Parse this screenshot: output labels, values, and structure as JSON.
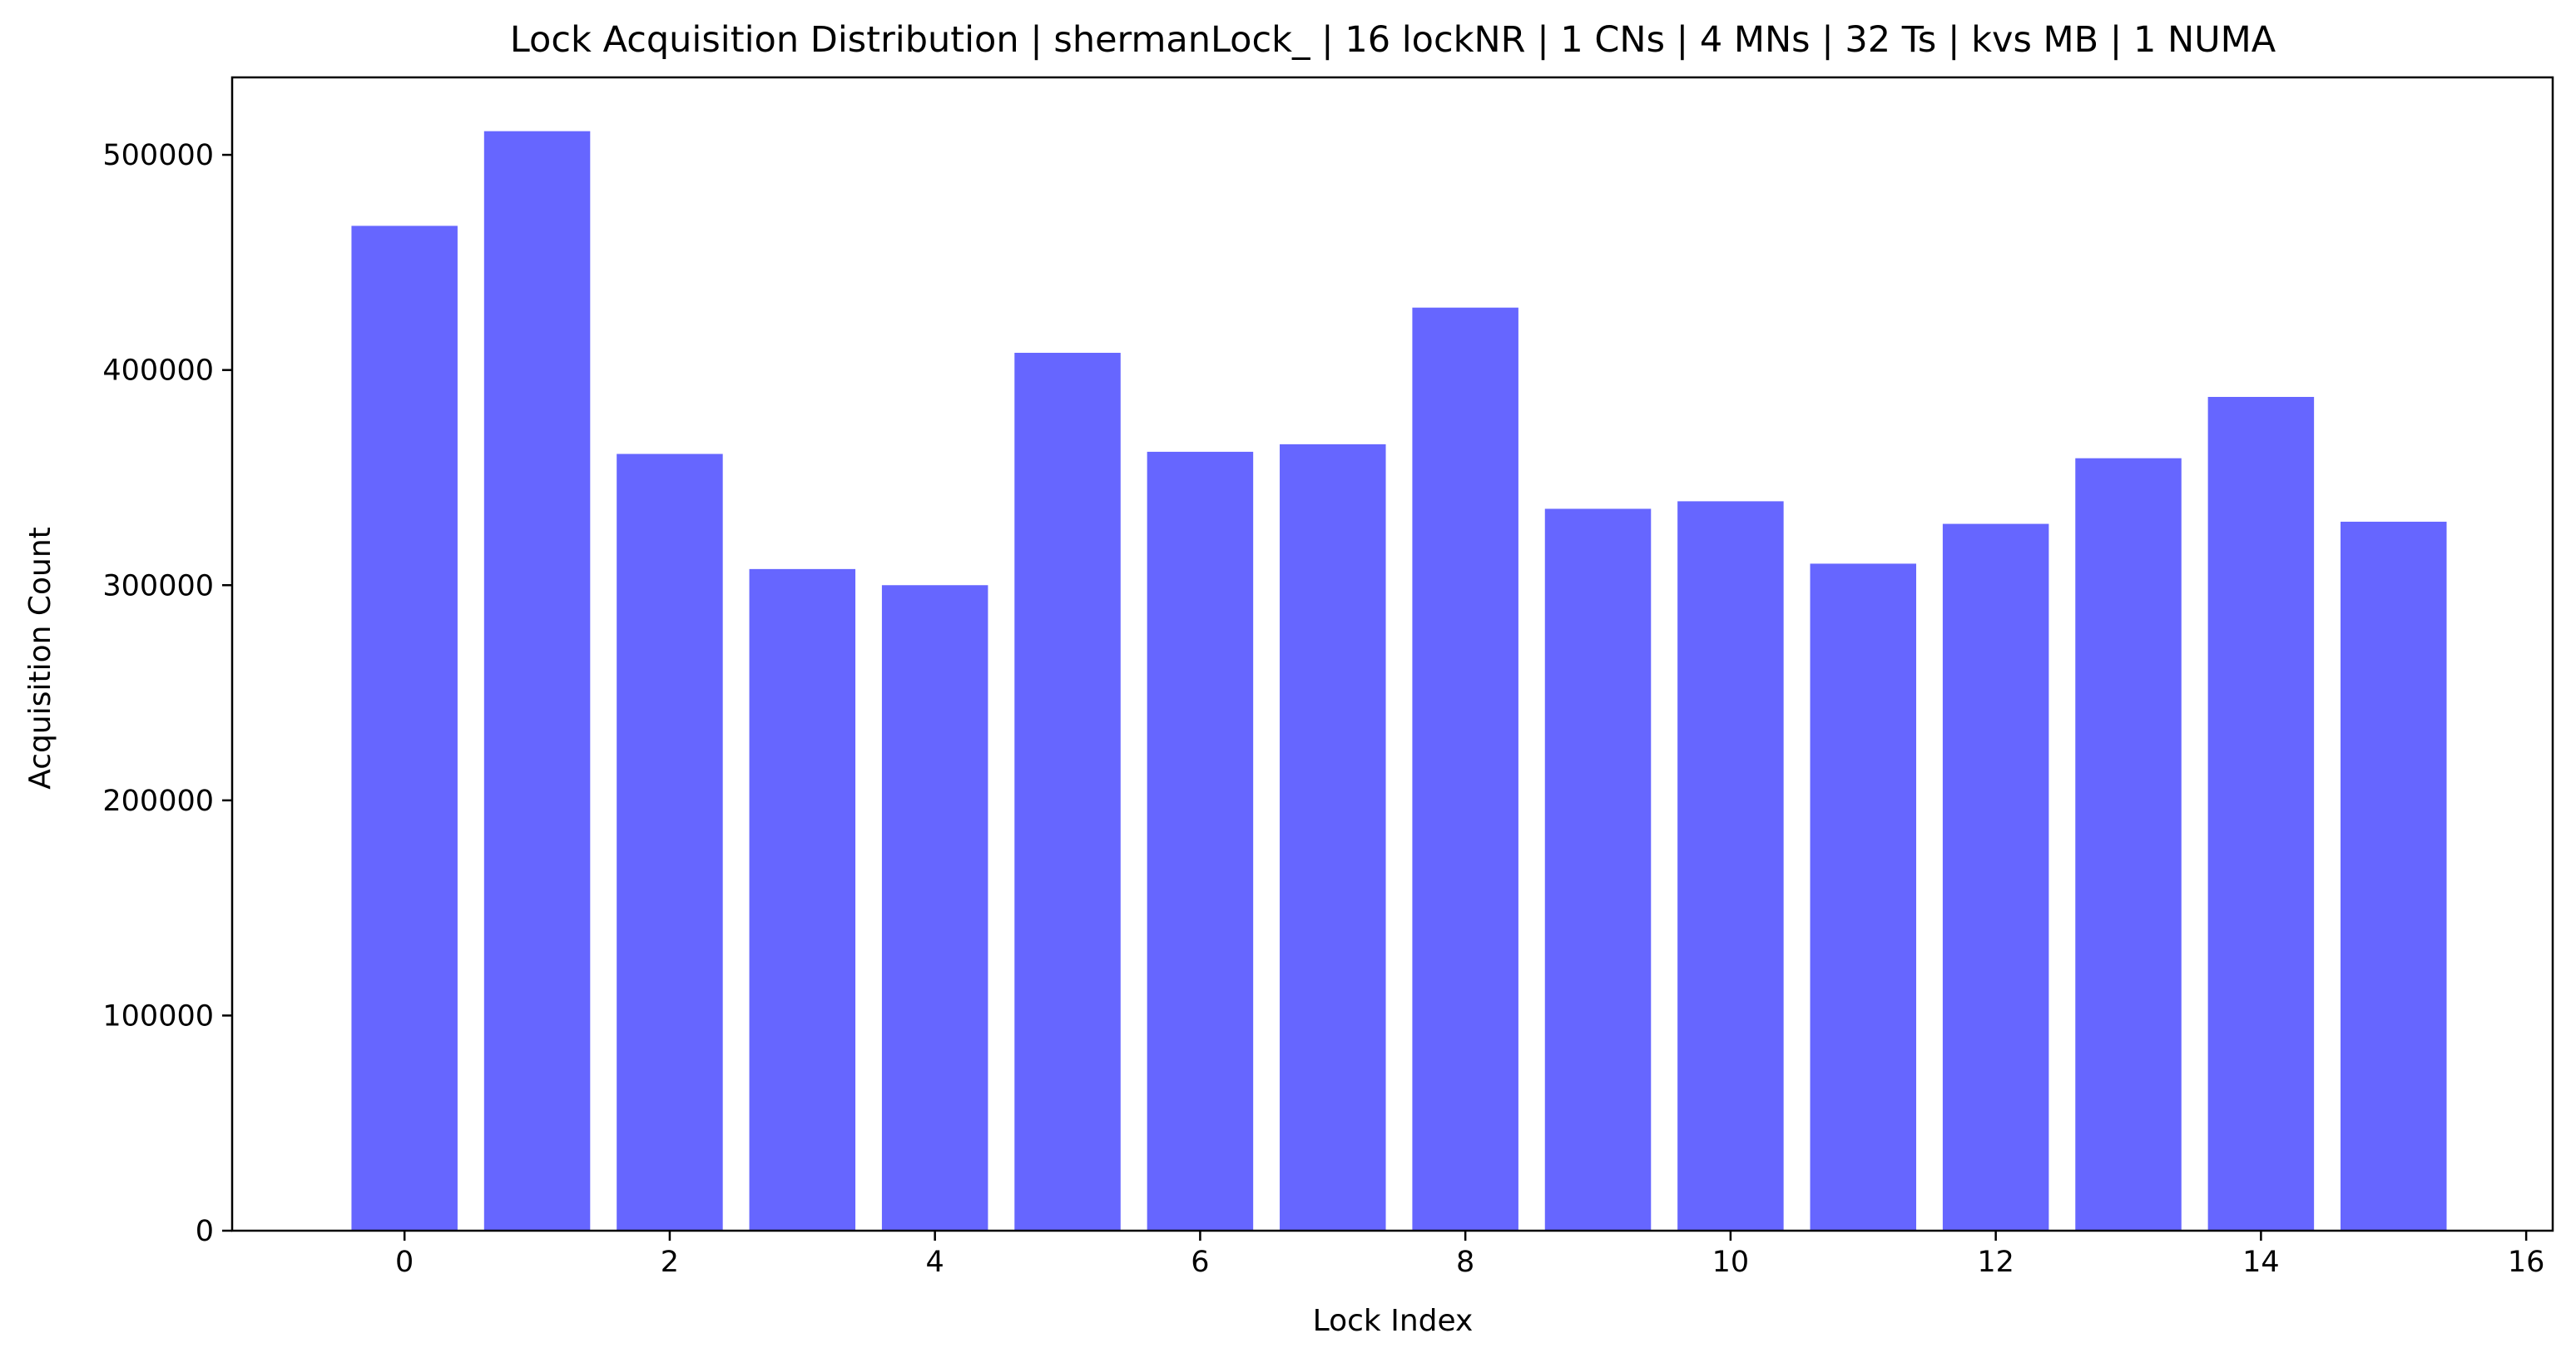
{
  "chart_data": {
    "type": "bar",
    "title": "Lock Acquisition Distribution | shermanLock_ | 16 lockNR | 1 CNs | 4 MNs | 32 Ts | kvs MB | 1 NUMA",
    "xlabel": "Lock Index",
    "ylabel": "Acquisition Count",
    "categories": [
      0,
      1,
      2,
      3,
      4,
      5,
      6,
      7,
      8,
      9,
      10,
      11,
      12,
      13,
      14,
      15
    ],
    "values": [
      467000,
      511000,
      361000,
      307500,
      300000,
      408000,
      362000,
      365500,
      429000,
      335500,
      339000,
      310000,
      328500,
      359000,
      387500,
      329500
    ],
    "xlim": [
      -1.3,
      16.2
    ],
    "ylim": [
      0,
      536000
    ],
    "xticks": [
      0,
      2,
      4,
      6,
      8,
      10,
      12,
      14,
      16
    ],
    "yticks": [
      0,
      100000,
      200000,
      300000,
      400000,
      500000
    ],
    "bar_color": "#6666ff",
    "grid": false,
    "legend": "none"
  }
}
